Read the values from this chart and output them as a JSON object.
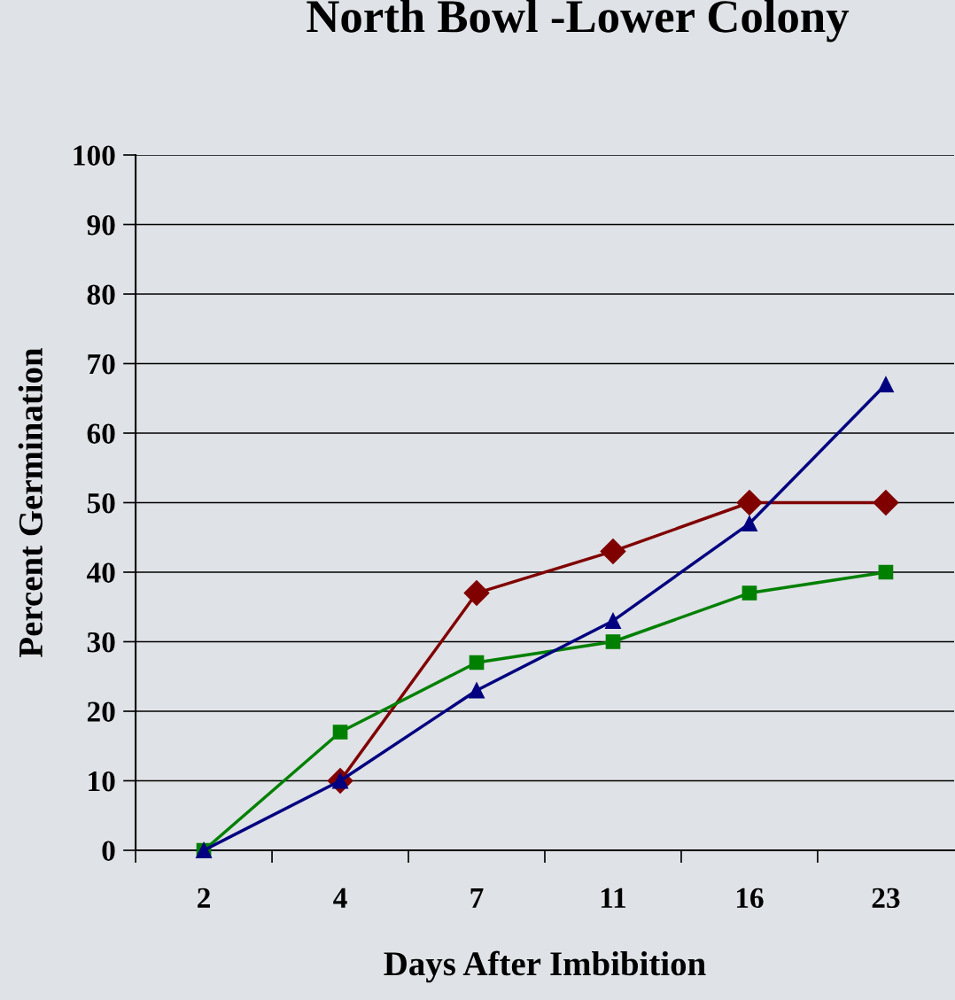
{
  "chart_data": {
    "type": "line",
    "title": "North Bowl -Lower Colony",
    "xlabel": "Days After Imbibition",
    "ylabel": "Percent Germination",
    "categories": [
      "2",
      "4",
      "7",
      "11",
      "16",
      "23"
    ],
    "series": [
      {
        "color": "#800000",
        "marker": "diamond",
        "values": [
          null,
          10,
          37,
          43,
          50,
          50
        ]
      },
      {
        "color": "#008000",
        "marker": "square",
        "values": [
          0,
          17,
          27,
          30,
          37,
          40
        ]
      },
      {
        "color": "#000080",
        "marker": "triangle",
        "values": [
          0,
          10,
          23,
          33,
          47,
          67
        ]
      }
    ],
    "ylim": [
      0,
      100
    ],
    "yticks": [
      0,
      10,
      20,
      30,
      40,
      50,
      60,
      70,
      80,
      90,
      100
    ],
    "grid": "y",
    "legend": false,
    "line_style": "solid"
  }
}
